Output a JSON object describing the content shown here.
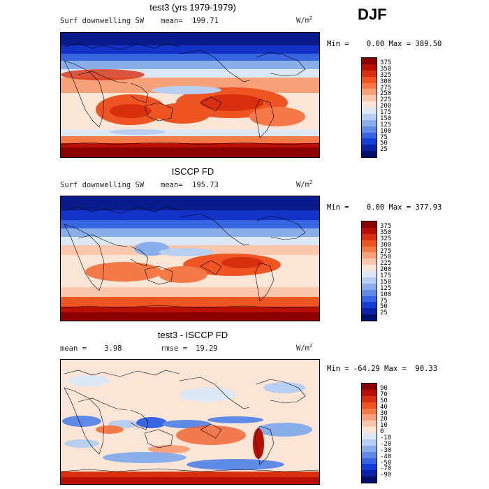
{
  "season": "DJF",
  "panels": [
    {
      "title": "test3 (yrs 1979-1979)",
      "left_label": "Surf downwelling SW",
      "stat_label": "mean=",
      "stat_value": "199.71",
      "units": "W/m",
      "units_sup": "2",
      "min_max": "Min =    0.00 Max = 389.50",
      "cbar_levels": [
        "375",
        "350",
        "325",
        "300",
        "275",
        "250",
        "225",
        "200",
        "175",
        "150",
        "125",
        "100",
        "75",
        "50",
        "25"
      ],
      "cbar_colors": [
        "#8b0000",
        "#b81004",
        "#d8300e",
        "#ee5522",
        "#f57a48",
        "#f7a17a",
        "#f8c7ae",
        "#fbe5d6",
        "#dde8f7",
        "#b8cff2",
        "#8aaeea",
        "#5f8ae5",
        "#3766e0",
        "#1040d8",
        "#0a22a8",
        "#00106a"
      ]
    },
    {
      "title": "ISCCP FD",
      "left_label": "Surf downwelling SW",
      "stat_label": "mean=",
      "stat_value": "195.73",
      "units": "W/m",
      "units_sup": "2",
      "min_max": "Min =    0.00 Max = 377.93",
      "cbar_levels": [
        "375",
        "350",
        "325",
        "300",
        "275",
        "250",
        "225",
        "200",
        "175",
        "150",
        "125",
        "100",
        "75",
        "50",
        "25"
      ],
      "cbar_colors": [
        "#8b0000",
        "#b81004",
        "#d8300e",
        "#ee5522",
        "#f57a48",
        "#f7a17a",
        "#f8c7ae",
        "#fbe5d6",
        "#dde8f7",
        "#b8cff2",
        "#8aaeea",
        "#5f8ae5",
        "#3766e0",
        "#1040d8",
        "#0a22a8",
        "#00106a"
      ]
    },
    {
      "title": "test3 - ISCCP FD",
      "left_label": "mean =    3.98",
      "stat_label": "rmse =",
      "stat_value": "19.29",
      "units": "W/m",
      "units_sup": "2",
      "min_max": "Min = -64.29 Max =  90.33",
      "cbar_levels": [
        "90",
        "70",
        "50",
        "40",
        "30",
        "20",
        "10",
        "0",
        "-10",
        "-20",
        "-30",
        "-40",
        "-50",
        "-70",
        "-90"
      ],
      "cbar_colors": [
        "#8b0000",
        "#b81004",
        "#d8300e",
        "#ee5522",
        "#f57a48",
        "#f7a17a",
        "#f8c7ae",
        "#fbe5d6",
        "#dde8f7",
        "#b8cff2",
        "#8aaeea",
        "#5f8ae5",
        "#3766e0",
        "#1040d8",
        "#0a22a8",
        "#00106a"
      ]
    }
  ],
  "chart_data": [
    {
      "type": "heatmap",
      "title": "test3 (yrs 1979-1979)",
      "variable": "Surf downwelling SW",
      "units": "W/m2",
      "mean": 199.71,
      "min": 0.0,
      "max": 389.5,
      "colorbar_levels": [
        25,
        50,
        75,
        100,
        125,
        150,
        175,
        200,
        225,
        250,
        275,
        300,
        325,
        350,
        375
      ]
    },
    {
      "type": "heatmap",
      "title": "ISCCP FD",
      "variable": "Surf downwelling SW",
      "units": "W/m2",
      "mean": 195.73,
      "min": 0.0,
      "max": 377.93,
      "colorbar_levels": [
        25,
        50,
        75,
        100,
        125,
        150,
        175,
        200,
        225,
        250,
        275,
        300,
        325,
        350,
        375
      ]
    },
    {
      "type": "heatmap",
      "title": "test3 - ISCCP FD",
      "units": "W/m2",
      "mean": 3.98,
      "rmse": 19.29,
      "min": -64.29,
      "max": 90.33,
      "colorbar_levels": [
        -90,
        -70,
        -50,
        -40,
        -30,
        -20,
        -10,
        0,
        10,
        20,
        30,
        40,
        50,
        70,
        90
      ]
    }
  ]
}
